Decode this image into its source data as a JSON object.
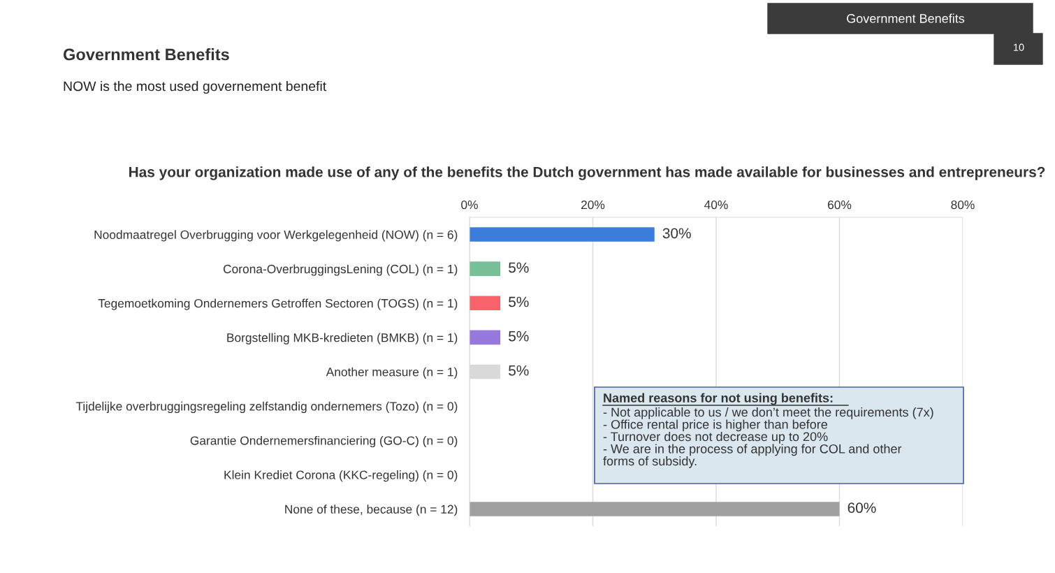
{
  "chart_data": {
    "type": "bar",
    "orientation": "horizontal",
    "title": "Government Benefits",
    "subtitle": "NOW is the most used governement benefit",
    "annotations": [
      "Government Benefits",
      "10",
      "Has your organization made use of any of the benefits the Dutch government has made available for businesses and entrepreneurs?",
      "Named reasons for not using benefits:",
      "- Not applicable to us / we don’t meet the requirements (7x)\n- Office rental price is higher than before\n- Turnover does not decrease up to 20%\n- We are in the process of applying for COL and other\nforms of subsidy."
    ],
    "categories": [
      "Noodmaatregel Overbrugging voor Werkgelegenheid (NOW) (n = 6)",
      "Corona-OverbruggingsLening (COL) (n = 1)",
      "Tegemoetkoming Ondernemers Getroffen Sectoren (TOGS) (n = 1)",
      "Borgstelling MKB-kredieten (BMKB) (n = 1)",
      "Another measure (n = 1)",
      "Tijdelijke overbruggingsregeling zelfstandig ondernemers (Tozo) (n = 0)",
      "Garantie Ondernemersfinanciering (GO-C) (n = 0)",
      "Klein Krediet Corona (KKC-regeling) (n = 0)",
      "None of these, because (n = 12)"
    ],
    "values": [
      30,
      5,
      5,
      5,
      5,
      0,
      0,
      0,
      60
    ],
    "value_labels": [
      "30%",
      "5%",
      "5%",
      "5%",
      "5%",
      null,
      null,
      null,
      "60%"
    ],
    "colors": [
      "#3c7ddb",
      "#77c097",
      "#f8636b",
      "#9778dc",
      "#d9d9d9",
      "#a0a0a0",
      "#a0a0a0",
      "#a0a0a0",
      "#a0a0a0"
    ],
    "xlim": [
      0,
      80
    ],
    "xticks": [
      {
        "value": 0,
        "label": "0%"
      },
      {
        "value": 20,
        "label": "20%"
      },
      {
        "value": 40,
        "label": "40%"
      },
      {
        "value": 60,
        "label": "60%"
      },
      {
        "value": 80,
        "label": "80%"
      }
    ],
    "grid": "x"
  }
}
